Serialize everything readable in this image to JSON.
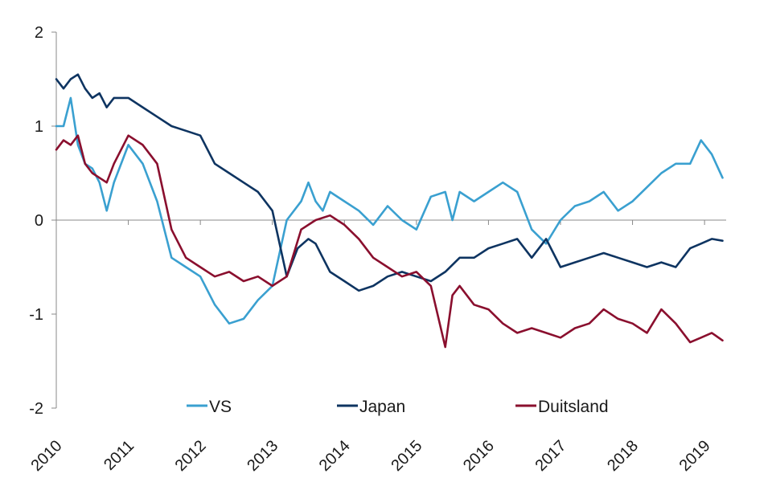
{
  "chart_data": {
    "type": "line",
    "title": "",
    "xlabel": "",
    "ylabel": "",
    "xlim": [
      2010,
      2019.3
    ],
    "ylim": [
      -2,
      2
    ],
    "grid": false,
    "legend_position": "bottom",
    "x_tick_labels": [
      "2010",
      "2011",
      "2012",
      "2013",
      "2014",
      "2015",
      "2016",
      "2017",
      "2018",
      "2019"
    ],
    "y_tick_labels": [
      "-2",
      "-1",
      "0",
      "1",
      "2"
    ],
    "series": [
      {
        "name": "VS",
        "color": "#3aa0d0",
        "x": [
          2010.0,
          2010.1,
          2010.2,
          2010.3,
          2010.4,
          2010.5,
          2010.6,
          2010.7,
          2010.8,
          2011.0,
          2011.2,
          2011.4,
          2011.6,
          2011.8,
          2012.0,
          2012.2,
          2012.4,
          2012.6,
          2012.8,
          2013.0,
          2013.2,
          2013.4,
          2013.5,
          2013.6,
          2013.7,
          2013.8,
          2014.0,
          2014.2,
          2014.4,
          2014.6,
          2014.8,
          2015.0,
          2015.2,
          2015.4,
          2015.5,
          2015.6,
          2015.8,
          2016.0,
          2016.2,
          2016.4,
          2016.6,
          2016.8,
          2017.0,
          2017.2,
          2017.4,
          2017.6,
          2017.8,
          2018.0,
          2018.2,
          2018.4,
          2018.6,
          2018.8,
          2018.95,
          2019.1,
          2019.25
        ],
        "values": [
          1.0,
          1.0,
          1.3,
          0.8,
          0.6,
          0.55,
          0.4,
          0.1,
          0.4,
          0.8,
          0.6,
          0.2,
          -0.4,
          -0.5,
          -0.6,
          -0.9,
          -1.1,
          -1.05,
          -0.85,
          -0.7,
          0.0,
          0.2,
          0.4,
          0.2,
          0.1,
          0.3,
          0.2,
          0.1,
          -0.05,
          0.15,
          0.0,
          -0.1,
          0.25,
          0.3,
          0.0,
          0.3,
          0.2,
          0.3,
          0.4,
          0.3,
          -0.1,
          -0.25,
          0.0,
          0.15,
          0.2,
          0.3,
          0.1,
          0.2,
          0.35,
          0.5,
          0.6,
          0.6,
          0.85,
          0.7,
          0.45
        ]
      },
      {
        "name": "Japan",
        "color": "#0e3461",
        "x": [
          2010.0,
          2010.1,
          2010.2,
          2010.3,
          2010.4,
          2010.5,
          2010.6,
          2010.7,
          2010.8,
          2011.0,
          2011.2,
          2011.4,
          2011.6,
          2011.8,
          2012.0,
          2012.2,
          2012.4,
          2012.6,
          2012.8,
          2013.0,
          2013.2,
          2013.35,
          2013.5,
          2013.6,
          2013.7,
          2013.8,
          2014.0,
          2014.2,
          2014.4,
          2014.6,
          2014.8,
          2015.0,
          2015.2,
          2015.4,
          2015.6,
          2015.8,
          2016.0,
          2016.2,
          2016.4,
          2016.6,
          2016.8,
          2017.0,
          2017.2,
          2017.4,
          2017.6,
          2017.8,
          2018.0,
          2018.2,
          2018.4,
          2018.6,
          2018.8,
          2018.95,
          2019.1,
          2019.25
        ],
        "values": [
          1.5,
          1.4,
          1.5,
          1.55,
          1.4,
          1.3,
          1.35,
          1.2,
          1.3,
          1.3,
          1.2,
          1.1,
          1.0,
          0.95,
          0.9,
          0.6,
          0.5,
          0.4,
          0.3,
          0.1,
          -0.6,
          -0.3,
          -0.2,
          -0.25,
          -0.4,
          -0.55,
          -0.65,
          -0.75,
          -0.7,
          -0.6,
          -0.55,
          -0.6,
          -0.65,
          -0.55,
          -0.4,
          -0.4,
          -0.3,
          -0.25,
          -0.2,
          -0.4,
          -0.2,
          -0.5,
          -0.45,
          -0.4,
          -0.35,
          -0.4,
          -0.45,
          -0.5,
          -0.45,
          -0.5,
          -0.3,
          -0.25,
          -0.2,
          -0.22
        ]
      },
      {
        "name": "Duitsland",
        "color": "#8a0f2e",
        "x": [
          2010.0,
          2010.1,
          2010.2,
          2010.3,
          2010.4,
          2010.5,
          2010.6,
          2010.7,
          2010.8,
          2011.0,
          2011.2,
          2011.4,
          2011.6,
          2011.8,
          2012.0,
          2012.2,
          2012.4,
          2012.6,
          2012.8,
          2013.0,
          2013.2,
          2013.4,
          2013.6,
          2013.8,
          2014.0,
          2014.2,
          2014.4,
          2014.6,
          2014.8,
          2015.0,
          2015.2,
          2015.4,
          2015.5,
          2015.6,
          2015.8,
          2016.0,
          2016.2,
          2016.4,
          2016.6,
          2016.8,
          2017.0,
          2017.2,
          2017.4,
          2017.6,
          2017.8,
          2018.0,
          2018.2,
          2018.4,
          2018.6,
          2018.8,
          2018.95,
          2019.1,
          2019.25
        ],
        "values": [
          0.75,
          0.85,
          0.8,
          0.9,
          0.6,
          0.5,
          0.45,
          0.4,
          0.6,
          0.9,
          0.8,
          0.6,
          -0.1,
          -0.4,
          -0.5,
          -0.6,
          -0.55,
          -0.65,
          -0.6,
          -0.7,
          -0.6,
          -0.1,
          0.0,
          0.05,
          -0.05,
          -0.2,
          -0.4,
          -0.5,
          -0.6,
          -0.55,
          -0.7,
          -1.35,
          -0.8,
          -0.7,
          -0.9,
          -0.95,
          -1.1,
          -1.2,
          -1.15,
          -1.2,
          -1.25,
          -1.15,
          -1.1,
          -0.95,
          -1.05,
          -1.1,
          -1.2,
          -0.95,
          -1.1,
          -1.3,
          -1.25,
          -1.2,
          -1.28
        ]
      }
    ]
  }
}
